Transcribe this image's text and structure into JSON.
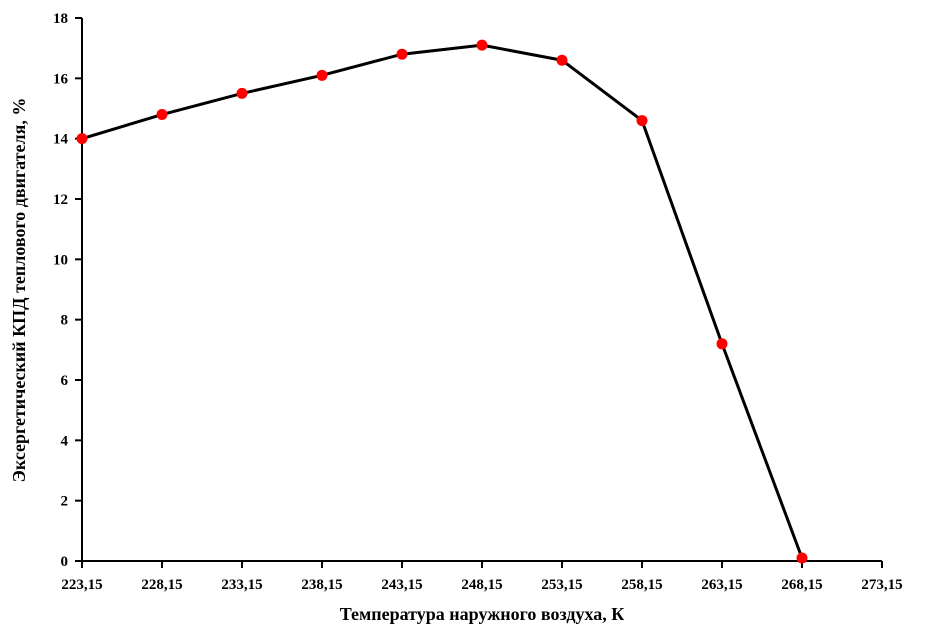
{
  "chart_data": {
    "type": "line",
    "title": "",
    "xlabel": "Температура наружного воздуха, К",
    "ylabel": "Эксергетический КПД теплового двигателя, %",
    "x_tick_labels": [
      "223,15",
      "228,15",
      "233,15",
      "238,15",
      "243,15",
      "248,15",
      "253,15",
      "258,15",
      "263,15",
      "268,15",
      "273,15"
    ],
    "y_tick_labels": [
      "0",
      "2",
      "4",
      "6",
      "8",
      "10",
      "12",
      "14",
      "16",
      "18"
    ],
    "xlim": [
      223.15,
      273.15
    ],
    "ylim": [
      0,
      18
    ],
    "x_step": 5,
    "y_step": 2,
    "grid": false,
    "legend": "none",
    "series": [
      {
        "x": [
          223.15,
          228.15,
          233.15,
          238.15,
          243.15,
          248.15,
          253.15,
          258.15,
          263.15,
          268.15
        ],
        "y": [
          14.0,
          14.8,
          15.5,
          16.1,
          16.8,
          17.1,
          16.6,
          14.6,
          7.2,
          0.1
        ],
        "line_color": "#000000",
        "marker_color": "#ff0000"
      }
    ]
  }
}
